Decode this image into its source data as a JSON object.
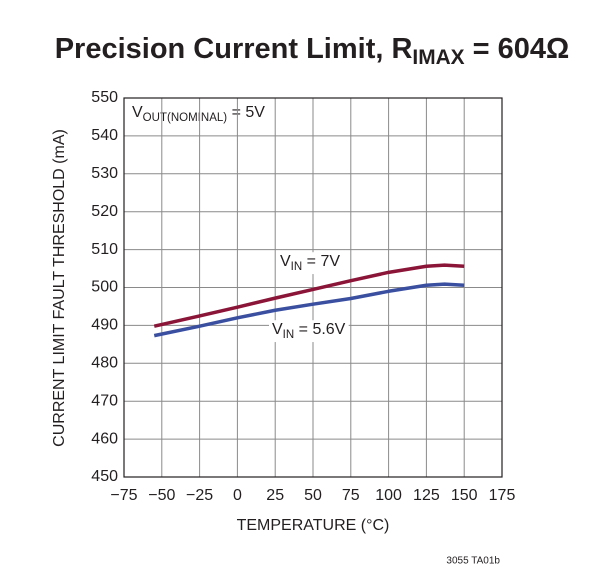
{
  "chart_data": {
    "type": "line",
    "title": [
      "Precision Current Limit, R",
      "IMAX",
      " = 604Ω"
    ],
    "annotation": [
      "V",
      "OUT(NOMINAL)",
      " = 5V"
    ],
    "footnote": "3055 TA01b",
    "x_label": "TEMPERATURE (°C)",
    "y_label": "CURRENT LIMIT FAULT THRESHOLD (mA)",
    "x": [
      -55,
      -25,
      0,
      25,
      50,
      75,
      100,
      125,
      137,
      150
    ],
    "series": [
      {
        "name": [
          "V",
          "IN",
          " = 7V"
        ],
        "color": "#8b1538",
        "values": [
          489.8,
          492.5,
          494.8,
          497.2,
          499.5,
          501.8,
          504,
          505.6,
          505.9,
          505.6
        ]
      },
      {
        "name": [
          "V",
          "IN",
          " = 5.6V"
        ],
        "color": "#3a4fa0",
        "values": [
          487.3,
          489.8,
          492,
          494,
          495.6,
          497.1,
          499,
          500.6,
          500.9,
          500.6
        ]
      }
    ],
    "xlim": [
      -75,
      175
    ],
    "xticks": [
      {
        "value": -75,
        "label": "−75"
      },
      {
        "value": -50,
        "label": "−50"
      },
      {
        "value": -25,
        "label": "−25"
      },
      0,
      25,
      50,
      75,
      100,
      125,
      150,
      175
    ],
    "ylim": [
      450,
      550
    ],
    "yticks": [
      450,
      460,
      470,
      480,
      490,
      500,
      510,
      520,
      530,
      540,
      550
    ],
    "grid": true
  }
}
